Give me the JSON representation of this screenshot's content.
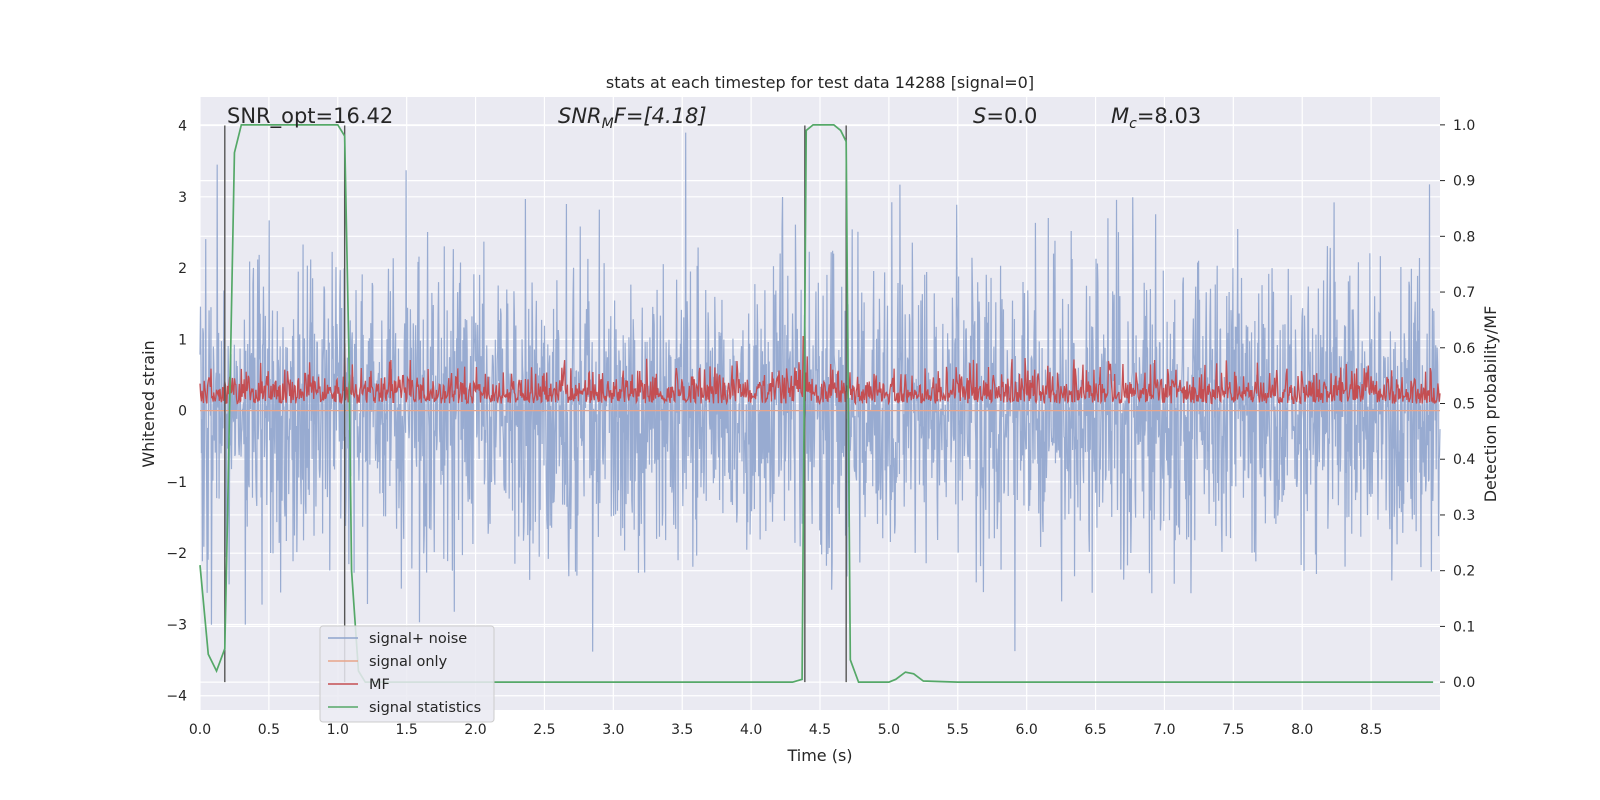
{
  "chart_data": {
    "type": "line",
    "title": "stats at each timestep for test data 14288 [signal=0]",
    "xlabel": "Time (s)",
    "ylabel": "Whitened strain",
    "y2label": "Detection probability/MF",
    "xlim": [
      0.0,
      9.0
    ],
    "ylim": [
      -4.2,
      4.4
    ],
    "y2lim": [
      -0.05,
      1.05
    ],
    "x_ticks": [
      "0.0",
      "0.5",
      "1.0",
      "1.5",
      "2.0",
      "2.5",
      "3.0",
      "3.5",
      "4.0",
      "4.5",
      "5.0",
      "5.5",
      "6.0",
      "6.5",
      "7.0",
      "7.5",
      "8.0",
      "8.5"
    ],
    "y_ticks": [
      "4",
      "3",
      "2",
      "1",
      "0",
      "−1",
      "−2",
      "−3",
      "−4"
    ],
    "y2_ticks": [
      "1.0",
      "0.9",
      "0.8",
      "0.7",
      "0.6",
      "0.5",
      "0.4",
      "0.3",
      "0.2",
      "0.1",
      "0.0"
    ],
    "grid": true,
    "legend_position": "lower-left",
    "annotations": {
      "snr_opt": "SNR_opt=16.42",
      "snr_mf_symbol": "SNR",
      "snr_mf_sub": "M",
      "snr_mf_rest": "F=[4.18]",
      "s_symbol": "S",
      "s_value": "=0.0",
      "mc_symbol": "M",
      "mc_sub": "c",
      "mc_value": "=8.03"
    },
    "vertical_lines_x": [
      0.18,
      1.05,
      4.39,
      4.69
    ],
    "series": [
      {
        "name": "signal+ noise",
        "axis": "left",
        "color": "#8fa4cd",
        "description_level": "noise-like, std ~1, extremes about -3.8 to 3.9",
        "envelope_min": -3.8,
        "envelope_max": 3.9
      },
      {
        "name": "signal only",
        "axis": "left",
        "color": "#e8a48a",
        "x": [
          0.0,
          9.0
        ],
        "y": [
          0.0,
          0.0
        ]
      },
      {
        "name": "MF",
        "axis": "right",
        "color": "#c44e52",
        "baseline": 0.5,
        "typical_peak": 0.58,
        "max_peak": 0.62,
        "max_peak_x": 4.38
      },
      {
        "name": "signal statistics",
        "axis": "right",
        "color": "#55a868",
        "x": [
          0.0,
          0.06,
          0.12,
          0.18,
          0.2,
          0.25,
          0.3,
          0.4,
          0.5,
          0.6,
          0.7,
          0.8,
          0.9,
          1.0,
          1.05,
          1.08,
          1.1,
          1.15,
          1.2,
          1.3,
          1.5,
          2.0,
          2.5,
          3.0,
          3.5,
          4.0,
          4.3,
          4.37,
          4.4,
          4.45,
          4.5,
          4.55,
          4.6,
          4.65,
          4.69,
          4.72,
          4.78,
          5.0,
          5.05,
          5.12,
          5.18,
          5.25,
          5.5,
          6.0,
          7.0,
          8.0,
          8.95
        ],
        "y": [
          0.21,
          0.05,
          0.02,
          0.06,
          0.3,
          0.95,
          1.0,
          1.0,
          1.0,
          1.0,
          1.0,
          1.0,
          1.0,
          1.0,
          0.98,
          0.6,
          0.2,
          0.02,
          0.0,
          0.0,
          0.0,
          0.0,
          0.0,
          0.0,
          0.0,
          0.0,
          0.0,
          0.005,
          0.99,
          1.0,
          1.0,
          1.0,
          1.0,
          0.99,
          0.97,
          0.04,
          0.0,
          0.0,
          0.005,
          0.018,
          0.015,
          0.002,
          0.0,
          0.0,
          0.0,
          0.0,
          0.0
        ]
      }
    ]
  }
}
